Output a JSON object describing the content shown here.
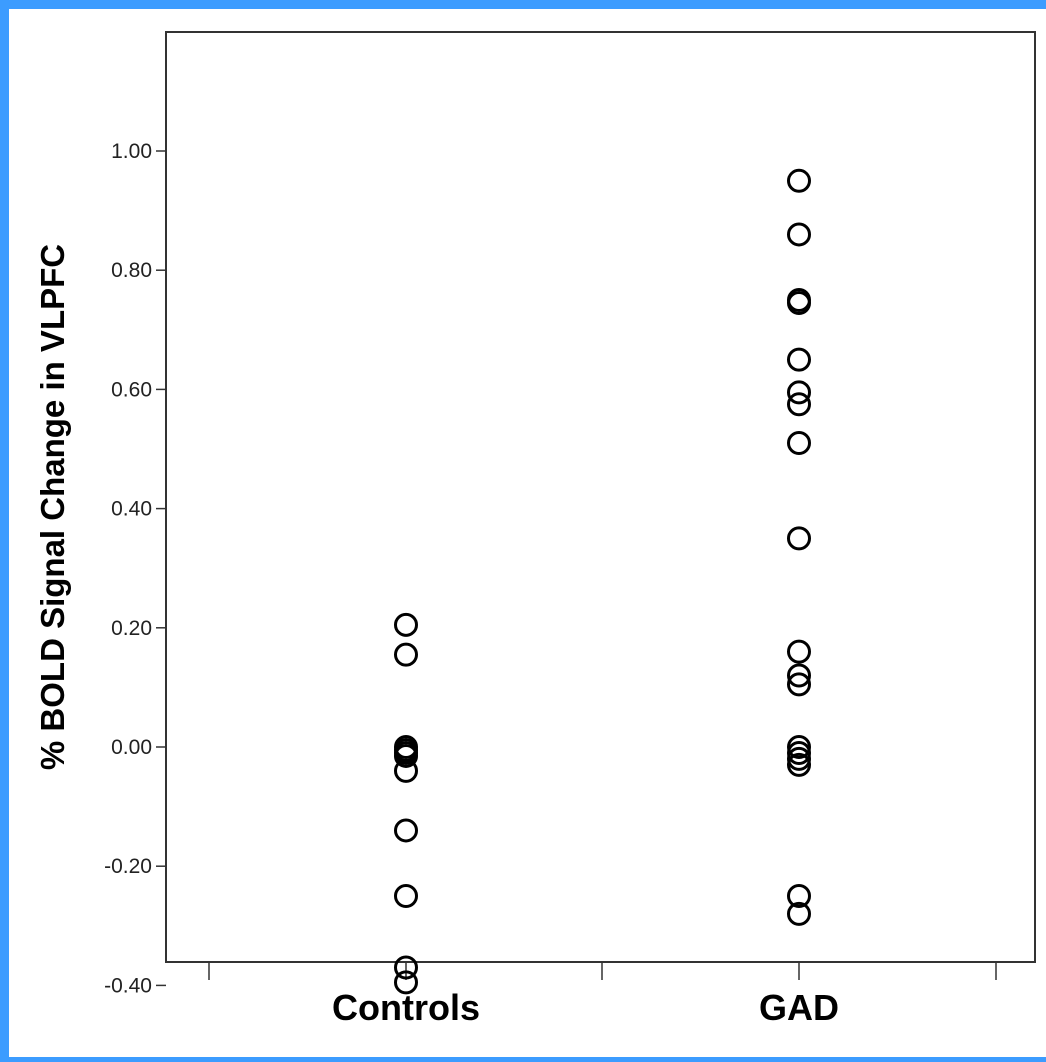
{
  "chart_data": {
    "type": "scatter",
    "title": "",
    "xlabel": "",
    "ylabel": "% BOLD Signal Change in VLPFC",
    "categories": [
      "Controls",
      "GAD"
    ],
    "ylim": [
      -0.48,
      1.08
    ],
    "yticks": [
      -0.4,
      -0.2,
      0.0,
      0.2,
      0.4,
      0.6,
      0.8,
      1.0
    ],
    "ytick_labels": [
      "-0.40",
      "-0.20",
      "0.00",
      "0.20",
      "0.40",
      "0.60",
      "0.80",
      "1.00"
    ],
    "grid": false,
    "legend": "none",
    "series": [
      {
        "category": "Controls",
        "values": [
          0.205,
          0.155,
          0.0,
          -0.005,
          -0.01,
          -0.015,
          -0.04,
          -0.14,
          -0.25,
          -0.37,
          -0.395
        ]
      },
      {
        "category": "GAD",
        "values": [
          0.95,
          0.86,
          0.75,
          0.745,
          0.65,
          0.595,
          0.575,
          0.51,
          0.35,
          0.16,
          0.12,
          0.105,
          0.0,
          -0.01,
          -0.02,
          -0.03,
          -0.25,
          -0.28
        ]
      }
    ],
    "colors": {
      "frame": "#333333",
      "marker": "#000000",
      "background": "#ffffff",
      "border": "#3c9cff"
    }
  }
}
